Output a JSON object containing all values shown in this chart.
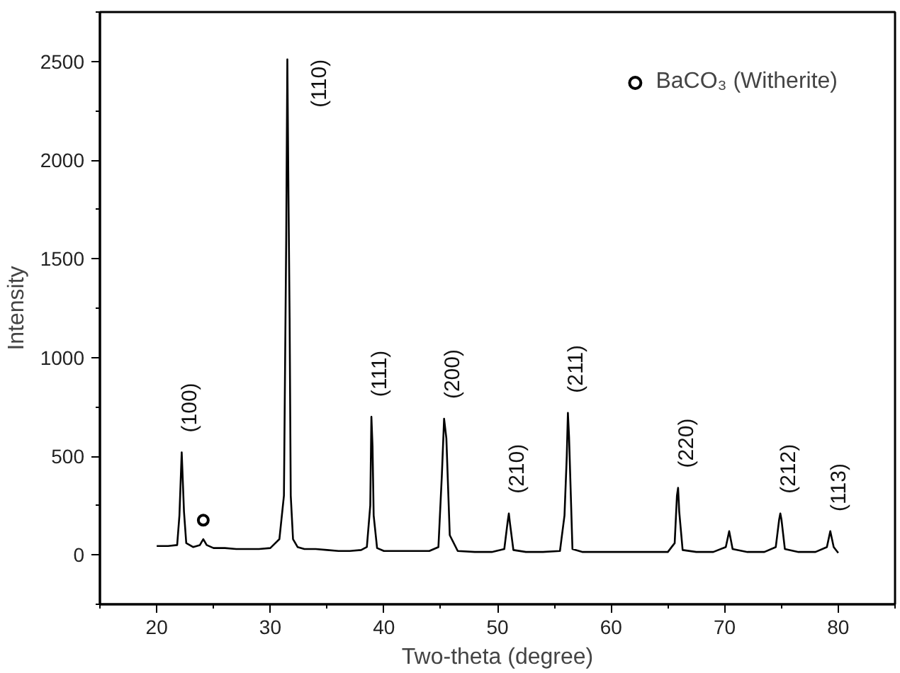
{
  "chart_data": {
    "type": "line",
    "xlabel": "Two-theta (degree)",
    "ylabel": "Intensity",
    "xlim": [
      15,
      85
    ],
    "ylim": [
      -250,
      2750
    ],
    "xticks": [
      20,
      30,
      40,
      50,
      60,
      70,
      80
    ],
    "yticks": [
      0,
      500,
      1000,
      1500,
      2000,
      2500
    ],
    "grid": false,
    "legend": "top right",
    "series": [
      {
        "color": "#000000",
        "x": [
          20,
          21,
          21.8,
          22.0,
          22.2,
          22.4,
          22.6,
          23.2,
          23.8,
          24.1,
          24.4,
          25,
          26,
          27,
          28,
          29,
          30,
          30.8,
          31.2,
          31.4,
          31.5,
          31.6,
          31.7,
          31.8,
          32.0,
          32.4,
          33,
          34,
          35,
          36,
          37,
          38,
          38.5,
          38.8,
          38.9,
          39.0,
          39.1,
          39.4,
          40,
          41,
          42,
          43,
          44,
          44.8,
          45.1,
          45.3,
          45.5,
          45.8,
          46.5,
          48,
          49.5,
          50.6,
          50.9,
          51.0,
          51.1,
          51.4,
          52.5,
          54,
          55.5,
          55.9,
          56.1,
          56.2,
          56.3,
          56.6,
          57.5,
          59,
          61,
          63,
          65,
          65.6,
          65.8,
          65.9,
          66.0,
          66.3,
          67.5,
          69,
          70.1,
          70.4,
          70.7,
          72,
          73.5,
          74.5,
          74.8,
          74.9,
          75.0,
          75.3,
          76.5,
          78,
          79.0,
          79.3,
          79.6,
          80
        ],
        "values": [
          45,
          45,
          50,
          200,
          520,
          220,
          60,
          40,
          50,
          80,
          50,
          35,
          35,
          30,
          30,
          30,
          35,
          80,
          300,
          1600,
          2510,
          1820,
          1200,
          300,
          80,
          40,
          30,
          30,
          25,
          20,
          20,
          25,
          40,
          250,
          700,
          550,
          200,
          35,
          20,
          20,
          20,
          20,
          20,
          40,
          400,
          690,
          590,
          100,
          20,
          15,
          15,
          30,
          170,
          210,
          160,
          25,
          15,
          15,
          20,
          200,
          500,
          720,
          600,
          30,
          15,
          15,
          15,
          15,
          15,
          60,
          300,
          340,
          220,
          25,
          15,
          15,
          40,
          120,
          30,
          15,
          15,
          40,
          180,
          210,
          180,
          30,
          15,
          15,
          40,
          120,
          40,
          10
        ]
      },
      {
        "type": "scatter",
        "name": "BaCO₃ (Witherite)",
        "marker": "circle",
        "color": "#000000",
        "x": [
          24.1
        ],
        "values": [
          176
        ]
      }
    ],
    "annotations": [
      {
        "text": "(100)",
        "x": 22.2,
        "y": 520
      },
      {
        "text": "(110)",
        "x": 31.6,
        "y": 2510
      },
      {
        "text": "(111)",
        "x": 38.9,
        "y": 700
      },
      {
        "text": "(200)",
        "x": 45.3,
        "y": 690
      },
      {
        "text": "(210)",
        "x": 51.0,
        "y": 210
      },
      {
        "text": "(211)",
        "x": 56.2,
        "y": 720
      },
      {
        "text": "(220)",
        "x": 65.9,
        "y": 340
      },
      {
        "text": "(212)",
        "x": 74.9,
        "y": 210
      },
      {
        "text": "(113)",
        "x": 79.3,
        "y": 120
      }
    ]
  }
}
